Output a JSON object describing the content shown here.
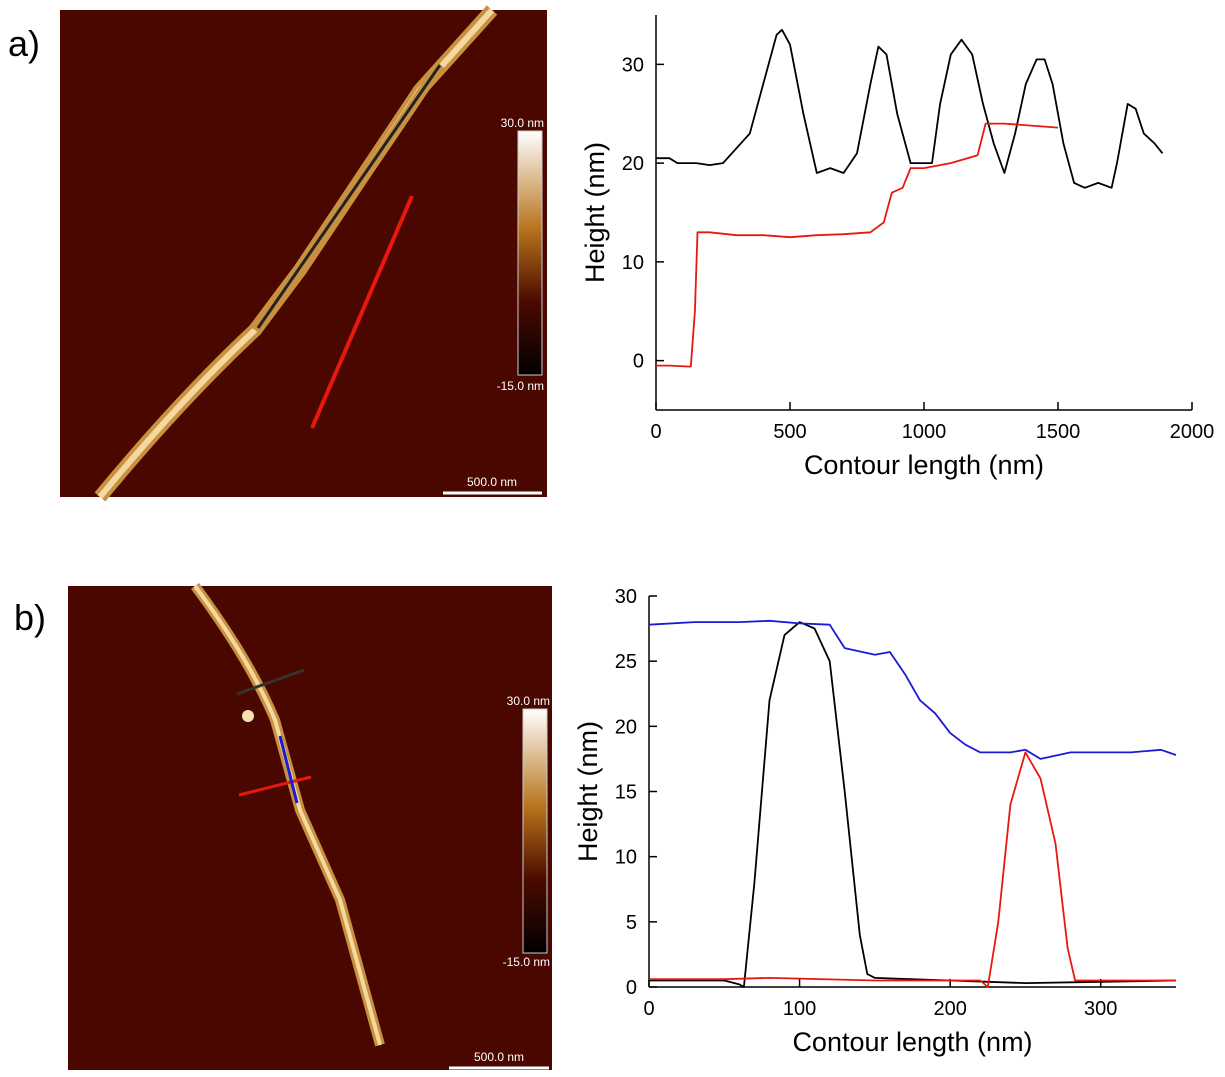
{
  "panels": [
    {
      "label": "a)",
      "scale_max": "30.0 nm",
      "scale_min": "-15.0 nm",
      "scale_bar": "500.0 nm"
    },
    {
      "label": "b)",
      "scale_max": "30.0 nm",
      "scale_min": "-15.0 nm",
      "scale_bar": "500.0 nm"
    }
  ],
  "chart_data": [
    {
      "type": "line",
      "xlabel": "Contour length (nm)",
      "ylabel": "Height (nm)",
      "xlim": [
        0,
        2000
      ],
      "xticks": [
        0,
        500,
        1000,
        1500,
        2000
      ],
      "ylim": [
        -5,
        35
      ],
      "yticks": [
        0,
        10,
        20,
        30
      ],
      "series": [
        {
          "color": "#000000",
          "x": [
            0,
            50,
            80,
            150,
            200,
            250,
            300,
            350,
            400,
            450,
            470,
            500,
            550,
            600,
            650,
            700,
            750,
            800,
            830,
            860,
            900,
            950,
            1000,
            1030,
            1060,
            1100,
            1140,
            1180,
            1220,
            1260,
            1300,
            1340,
            1380,
            1420,
            1450,
            1480,
            1520,
            1560,
            1600,
            1650,
            1700,
            1720,
            1760,
            1790,
            1820,
            1860,
            1890
          ],
          "values": [
            20.5,
            20.5,
            20,
            20,
            19.8,
            20,
            21.5,
            23,
            28,
            33,
            33.5,
            32,
            25,
            19,
            19.5,
            19,
            21,
            28,
            31.8,
            31,
            25,
            20,
            20,
            20,
            26,
            31,
            32.5,
            31,
            26,
            22,
            19,
            23,
            28,
            30.5,
            30.5,
            28,
            22,
            18,
            17.5,
            18,
            17.5,
            20,
            26,
            25.5,
            23,
            22,
            21
          ]
        },
        {
          "color": "#e8190c",
          "x": [
            0,
            50,
            130,
            145,
            155,
            200,
            300,
            400,
            500,
            600,
            700,
            800,
            850,
            880,
            920,
            950,
            1000,
            1100,
            1200,
            1230,
            1300,
            1400,
            1500
          ],
          "values": [
            -0.5,
            -0.5,
            -0.6,
            5,
            13,
            13,
            12.7,
            12.7,
            12.5,
            12.7,
            12.8,
            13,
            14,
            17,
            17.5,
            19.5,
            19.5,
            20,
            20.8,
            24,
            24,
            23.8,
            23.6
          ]
        }
      ]
    },
    {
      "type": "line",
      "xlabel": "Contour length (nm)",
      "ylabel": "Height (nm)",
      "xlim": [
        0,
        350
      ],
      "xticks": [
        0,
        100,
        200,
        300
      ],
      "ylim": [
        0,
        30
      ],
      "yticks": [
        0,
        5,
        10,
        15,
        20,
        25,
        30
      ],
      "series": [
        {
          "color": "#000000",
          "x": [
            0,
            50,
            60,
            63,
            70,
            80,
            90,
            100,
            110,
            120,
            130,
            140,
            145,
            150,
            200,
            250,
            300,
            350
          ],
          "values": [
            0.5,
            0.5,
            0.2,
            0,
            8,
            22,
            27,
            28,
            27.5,
            25,
            15,
            4,
            1,
            0.7,
            0.5,
            0.3,
            0.4,
            0.5
          ]
        },
        {
          "color": "#e8190c",
          "x": [
            0,
            50,
            80,
            150,
            200,
            220,
            225,
            232,
            240,
            250,
            260,
            270,
            278,
            283,
            300,
            350
          ],
          "values": [
            0.6,
            0.6,
            0.7,
            0.5,
            0.5,
            0.5,
            0,
            5,
            14,
            18,
            16,
            11,
            3,
            0.5,
            0.5,
            0.5
          ]
        },
        {
          "color": "#1a1ad6",
          "x": [
            0,
            30,
            60,
            80,
            100,
            120,
            130,
            150,
            160,
            170,
            180,
            190,
            200,
            210,
            220,
            230,
            240,
            250,
            260,
            280,
            300,
            320,
            340,
            350
          ],
          "values": [
            27.8,
            28,
            28,
            28.1,
            27.9,
            27.8,
            26,
            25.5,
            25.7,
            24,
            22,
            21,
            19.5,
            18.6,
            18,
            18,
            18,
            18.2,
            17.5,
            18,
            18,
            18,
            18.2,
            17.8
          ]
        }
      ]
    }
  ]
}
